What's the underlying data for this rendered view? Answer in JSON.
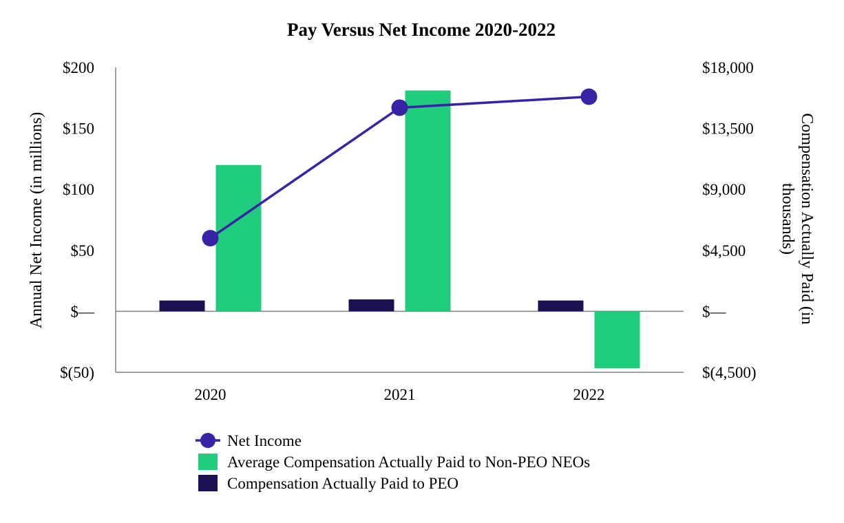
{
  "chart_data": {
    "type": "bar",
    "title": "Pay Versus Net Income 2020-2022",
    "categories": [
      "2020",
      "2021",
      "2022"
    ],
    "ylabel_left": "Annual Net Income (in millions)",
    "ylabel_right_line1": "Compensation Actually Paid (in",
    "ylabel_right_line2": "thousands)",
    "left_axis": {
      "ylim": [
        -50,
        200
      ],
      "ticks": [
        200,
        150,
        100,
        50,
        0,
        -50
      ],
      "tick_labels": [
        "$200",
        "$150",
        "$100",
        "$50",
        "$—",
        "$(50)"
      ]
    },
    "right_axis": {
      "ylim": [
        -4500,
        18000
      ],
      "ticks": [
        18000,
        13500,
        9000,
        4500,
        0,
        -4500
      ],
      "tick_labels": [
        "$18,000",
        "$13,500",
        "$9,000",
        "$4,500",
        "$—",
        "$(4,500)"
      ]
    },
    "series": [
      {
        "name": "Compensation Actually Paid to PEO",
        "kind": "bar",
        "axis": "right",
        "color": "#1c1153",
        "values": [
          800,
          880,
          800
        ]
      },
      {
        "name": "Average Compensation Actually Paid to Non-PEO NEOs",
        "kind": "bar",
        "axis": "right",
        "color": "#20cd7c",
        "values": [
          10800,
          16300,
          -4200
        ]
      },
      {
        "name": "Net Income",
        "kind": "line",
        "axis": "left",
        "color": "#3a22a6",
        "values": [
          60,
          167,
          176
        ]
      }
    ],
    "legend": {
      "position": "bottom",
      "order": [
        "Net Income",
        "Average Compensation Actually Paid to Non-PEO NEOs",
        "Compensation Actually Paid to PEO"
      ]
    },
    "grid": false
  }
}
